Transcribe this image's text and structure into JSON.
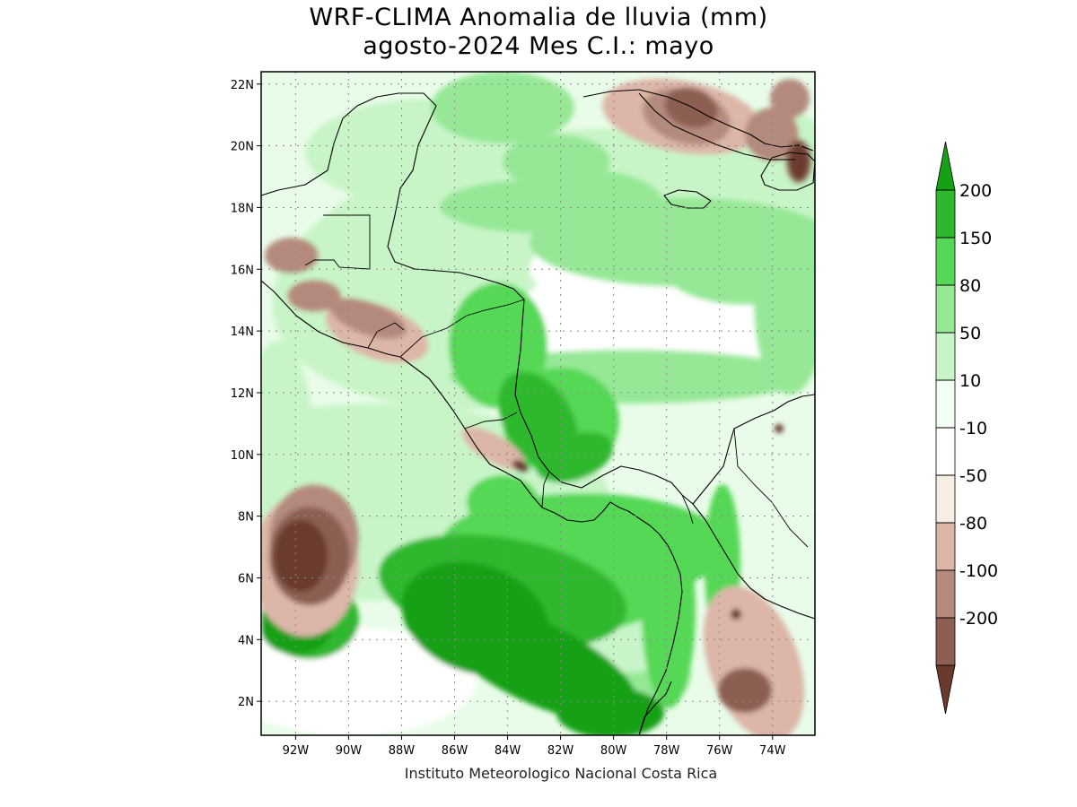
{
  "title_line1": "WRF-CLIMA Anomalia de lluvia (mm)",
  "title_line2": "agosto-2024 Mes C.I.: mayo",
  "credit": "Instituto Meteorologico Nacional Costa Rica",
  "map": {
    "lon_range": [
      -93.3,
      -72.4
    ],
    "lat_range": [
      0.9,
      22.4
    ],
    "lon_ticks": [
      {
        "value": -92,
        "label": "92W"
      },
      {
        "value": -90,
        "label": "90W"
      },
      {
        "value": -88,
        "label": "88W"
      },
      {
        "value": -86,
        "label": "86W"
      },
      {
        "value": -84,
        "label": "84W"
      },
      {
        "value": -82,
        "label": "82W"
      },
      {
        "value": -80,
        "label": "80W"
      },
      {
        "value": -78,
        "label": "78W"
      },
      {
        "value": -76,
        "label": "76W"
      },
      {
        "value": -74,
        "label": "74W"
      }
    ],
    "lat_ticks": [
      {
        "value": 2,
        "label": "2N"
      },
      {
        "value": 4,
        "label": "4N"
      },
      {
        "value": 6,
        "label": "6N"
      },
      {
        "value": 8,
        "label": "8N"
      },
      {
        "value": 10,
        "label": "10N"
      },
      {
        "value": 12,
        "label": "12N"
      },
      {
        "value": 14,
        "label": "14N"
      },
      {
        "value": 16,
        "label": "16N"
      },
      {
        "value": 18,
        "label": "18N"
      },
      {
        "value": 20,
        "label": "20N"
      },
      {
        "value": 22,
        "label": "22N"
      }
    ],
    "grid": true,
    "background_class": "10 to 50"
  },
  "legend": {
    "placement": "right",
    "labels": [
      "200",
      "150",
      "80",
      "50",
      "10",
      "-10",
      "-50",
      "-80",
      "-100",
      "-200"
    ],
    "top_arrow_color": "#16a016",
    "bottom_arrow_color": "#6b3a2e",
    "box_colors": [
      "#2fb82f",
      "#55d855",
      "#96e896",
      "#c8f5c8",
      "#f2fff2",
      "#ffffff",
      "#f6ede3",
      "#dcb6a9",
      "#b58a7e",
      "#8d5f52"
    ]
  },
  "colors": {
    "g5": "#16a016",
    "g4": "#2fb82f",
    "g3": "#55d855",
    "g2": "#96e896",
    "g1": "#c8f5c8",
    "g0": "#e9fce9",
    "white": "#ffffff",
    "b1": "#f6ede3",
    "b2": "#dcb6a9",
    "b3": "#b58a7e",
    "b4": "#8d5f52",
    "b5": "#6b3a2e"
  }
}
